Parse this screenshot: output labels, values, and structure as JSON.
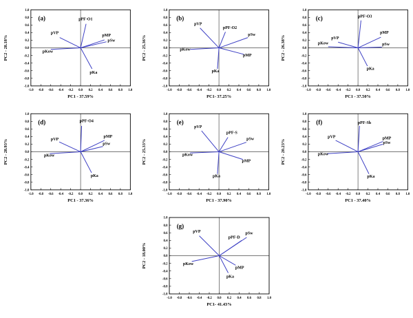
{
  "figure": {
    "background": "#ffffff",
    "vector_color": "#3c3fc4",
    "axis_color": "#000000",
    "zero_line_color": "#4a4a4a",
    "text_color": "#000000"
  },
  "chart_data": {
    "type": "scatter",
    "subtype": "pca-loading-biplot",
    "grid": false,
    "legend": "none",
    "tick_step": 0.2,
    "tick_labels": [
      "-1.0",
      "-0.8",
      "-0.6",
      "-0.4",
      "-0.2",
      "0.0",
      "0.2",
      "0.4",
      "0.6",
      "0.8",
      "1.0"
    ],
    "panels": [
      {
        "id": "(a)",
        "xlabel": "PC1 - 37.59%",
        "ylabel": "PC2 - 28.18%",
        "xlim": [
          -1.0,
          1.0
        ],
        "ylim": [
          -1.0,
          1.0
        ],
        "vectors": [
          {
            "name": "pPF-O1",
            "x": 0.11,
            "y": 0.63,
            "lx": 0.1,
            "ly": 0.72
          },
          {
            "name": "pVP",
            "x": -0.42,
            "y": 0.27,
            "lx": -0.52,
            "ly": 0.36
          },
          {
            "name": "pMP",
            "x": 0.48,
            "y": 0.21,
            "lx": 0.52,
            "ly": 0.3
          },
          {
            "name": "pSw",
            "x": 0.52,
            "y": 0.16,
            "lx": 0.62,
            "ly": 0.16
          },
          {
            "name": "pKow",
            "x": -0.6,
            "y": -0.04,
            "lx": -0.66,
            "ly": -0.13
          },
          {
            "name": "pKa",
            "x": 0.23,
            "y": -0.55,
            "lx": 0.26,
            "ly": -0.68
          }
        ]
      },
      {
        "id": "(b)",
        "xlabel": "PC1- 37.25%",
        "ylabel": "PC2 - 25.36%",
        "xlim": [
          -1.0,
          1.0
        ],
        "ylim": [
          -1.0,
          1.0
        ],
        "vectors": [
          {
            "name": "pVP",
            "x": -0.38,
            "y": 0.52,
            "lx": -0.42,
            "ly": 0.6
          },
          {
            "name": "pPF-O2",
            "x": 0.13,
            "y": 0.42,
            "lx": 0.22,
            "ly": 0.5
          },
          {
            "name": "pSw",
            "x": 0.58,
            "y": 0.27,
            "lx": 0.66,
            "ly": 0.32
          },
          {
            "name": "pKow",
            "x": -0.58,
            "y": -0.04,
            "lx": -0.68,
            "ly": -0.07
          },
          {
            "name": "pMP",
            "x": 0.5,
            "y": -0.17,
            "lx": 0.57,
            "ly": -0.23
          },
          {
            "name": "pKa",
            "x": -0.03,
            "y": -0.55,
            "lx": -0.07,
            "ly": -0.64
          }
        ]
      },
      {
        "id": "(c)",
        "xlabel": "PC1 - 37.50%",
        "ylabel": "PC2 - 26.38%",
        "xlim": [
          -1.0,
          1.0
        ],
        "ylim": [
          -1.0,
          1.0
        ],
        "vectors": [
          {
            "name": "pPF-O3",
            "x": 0.06,
            "y": 0.72,
            "lx": 0.14,
            "ly": 0.8
          },
          {
            "name": "pMP",
            "x": 0.46,
            "y": 0.28,
            "lx": 0.53,
            "ly": 0.37
          },
          {
            "name": "pVP",
            "x": -0.4,
            "y": 0.15,
            "lx": -0.46,
            "ly": 0.23
          },
          {
            "name": "pKow",
            "x": -0.6,
            "y": 0.03,
            "lx": -0.7,
            "ly": 0.09
          },
          {
            "name": "pSw",
            "x": 0.48,
            "y": 0.02,
            "lx": 0.56,
            "ly": 0.06
          },
          {
            "name": "pKa",
            "x": 0.19,
            "y": -0.48,
            "lx": 0.25,
            "ly": -0.58
          }
        ]
      },
      {
        "id": "(d)",
        "xlabel": "PC1 - 37.36%",
        "ylabel": "PC2 - 28.93%",
        "xlim": [
          -1.0,
          1.0
        ],
        "ylim": [
          -1.0,
          1.0
        ],
        "vectors": [
          {
            "name": "pPF-O4",
            "x": 0.02,
            "y": 0.68,
            "lx": 0.12,
            "ly": 0.78
          },
          {
            "name": "pMP",
            "x": 0.48,
            "y": 0.3,
            "lx": 0.55,
            "ly": 0.37
          },
          {
            "name": "pVP",
            "x": -0.43,
            "y": 0.26,
            "lx": -0.52,
            "ly": 0.3
          },
          {
            "name": "pSw",
            "x": 0.45,
            "y": 0.14,
            "lx": 0.52,
            "ly": 0.18
          },
          {
            "name": "pKow",
            "x": -0.62,
            "y": -0.05,
            "lx": -0.63,
            "ly": -0.13
          },
          {
            "name": "pKa",
            "x": 0.22,
            "y": -0.55,
            "lx": 0.28,
            "ly": -0.66
          }
        ]
      },
      {
        "id": "(e)",
        "xlabel": "PC1 - 37.90%",
        "ylabel": "PC2 - 25.33%",
        "xlim": [
          -1.0,
          1.0
        ],
        "ylim": [
          -1.0,
          1.0
        ],
        "vectors": [
          {
            "name": "pVP",
            "x": -0.35,
            "y": 0.55,
            "lx": -0.42,
            "ly": 0.62
          },
          {
            "name": "pPF-S",
            "x": 0.18,
            "y": 0.38,
            "lx": 0.26,
            "ly": 0.47
          },
          {
            "name": "pSw",
            "x": 0.55,
            "y": 0.25,
            "lx": 0.63,
            "ly": 0.31
          },
          {
            "name": "pKow",
            "x": -0.58,
            "y": -0.03,
            "lx": -0.63,
            "ly": -0.11
          },
          {
            "name": "pMP",
            "x": 0.48,
            "y": -0.2,
            "lx": 0.55,
            "ly": -0.27
          },
          {
            "name": "pKa",
            "x": -0.03,
            "y": -0.58,
            "lx": -0.05,
            "ly": -0.67
          }
        ]
      },
      {
        "id": "(f)",
        "xlabel": "PC1 - 37.40%",
        "ylabel": "PC2 - 20.23%",
        "xlim": [
          -1.0,
          1.0
        ],
        "ylim": [
          -1.0,
          1.0
        ],
        "vectors": [
          {
            "name": "pPF-Sh",
            "x": 0.03,
            "y": 0.68,
            "lx": 0.13,
            "ly": 0.73
          },
          {
            "name": "pMP",
            "x": 0.5,
            "y": 0.27,
            "lx": 0.58,
            "ly": 0.33
          },
          {
            "name": "pSw",
            "x": 0.5,
            "y": 0.2,
            "lx": 0.58,
            "ly": 0.21
          },
          {
            "name": "pVP",
            "x": -0.45,
            "y": 0.3,
            "lx": -0.53,
            "ly": 0.36
          },
          {
            "name": "pKow",
            "x": -0.62,
            "y": -0.05,
            "lx": -0.7,
            "ly": -0.09
          },
          {
            "name": "pKa",
            "x": 0.22,
            "y": -0.58,
            "lx": 0.26,
            "ly": -0.68
          }
        ]
      },
      {
        "id": "(g)",
        "xlabel": "PC1- 41.43%",
        "ylabel": "PC2 - 18.00%",
        "xlim": [
          -1.0,
          1.0
        ],
        "ylim": [
          -1.0,
          1.0
        ],
        "vectors": [
          {
            "name": "pVP",
            "x": -0.4,
            "y": 0.52,
            "lx": -0.45,
            "ly": 0.6
          },
          {
            "name": "pSw",
            "x": 0.55,
            "y": 0.48,
            "lx": 0.6,
            "ly": 0.56
          },
          {
            "name": "pPF-D",
            "x": 0.45,
            "y": 0.4,
            "lx": 0.3,
            "ly": 0.45
          },
          {
            "name": "pKow",
            "x": -0.55,
            "y": -0.15,
            "lx": -0.62,
            "ly": -0.24
          },
          {
            "name": "pMP",
            "x": 0.33,
            "y": -0.25,
            "lx": 0.41,
            "ly": -0.34
          },
          {
            "name": "pKa",
            "x": 0.18,
            "y": -0.45,
            "lx": 0.22,
            "ly": -0.58
          }
        ]
      }
    ]
  }
}
